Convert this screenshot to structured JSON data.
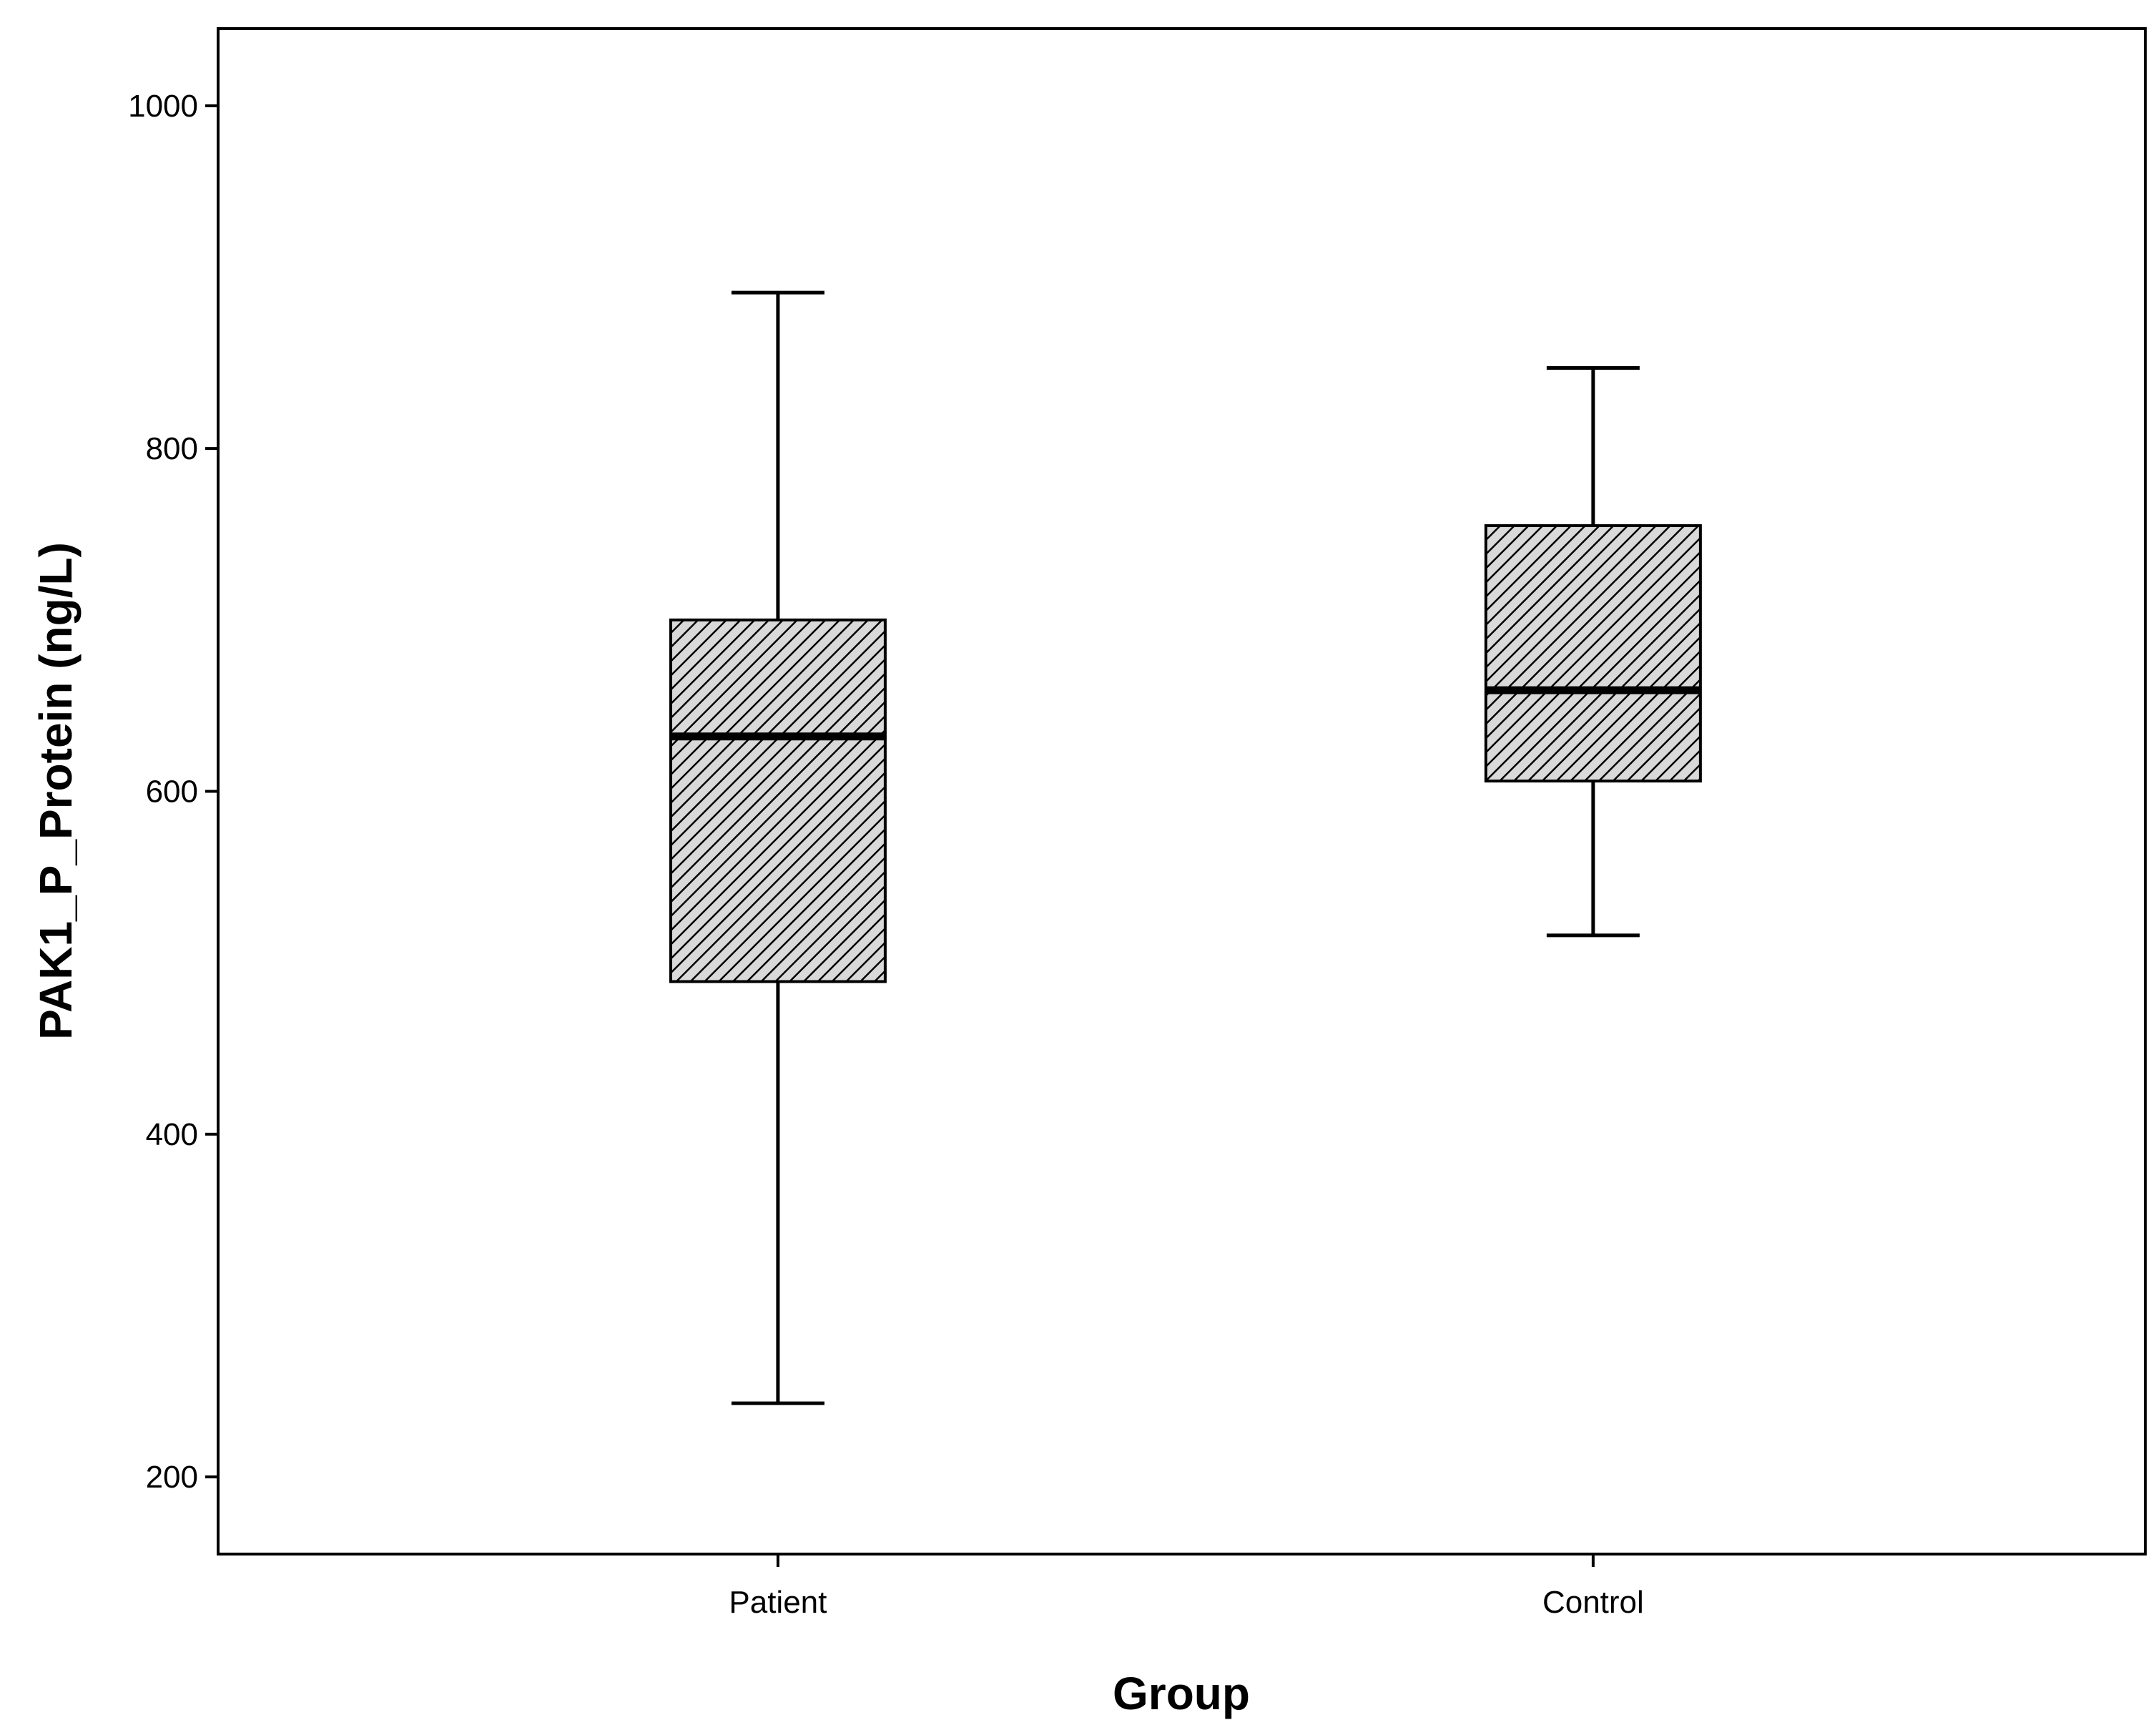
{
  "chart_data": {
    "type": "box",
    "title": "",
    "xlabel": "Group",
    "ylabel": "PAK1_P_Protein (ng/L)",
    "ylim": [
      155,
      1045
    ],
    "yticks": [
      200,
      400,
      600,
      800,
      1000
    ],
    "grid": false,
    "legend": "none",
    "categories": [
      "Patient",
      "Control"
    ],
    "boxes": [
      {
        "category": "Patient",
        "whisker_low": 243,
        "q1": 489,
        "median": 632,
        "q3": 700,
        "whisker_high": 891
      },
      {
        "category": "Control",
        "whisker_low": 516,
        "q1": 606,
        "median": 659,
        "q3": 755,
        "whisker_high": 847
      }
    ],
    "box_fill": "#d9d9d9",
    "hatch_color": "#000000"
  }
}
